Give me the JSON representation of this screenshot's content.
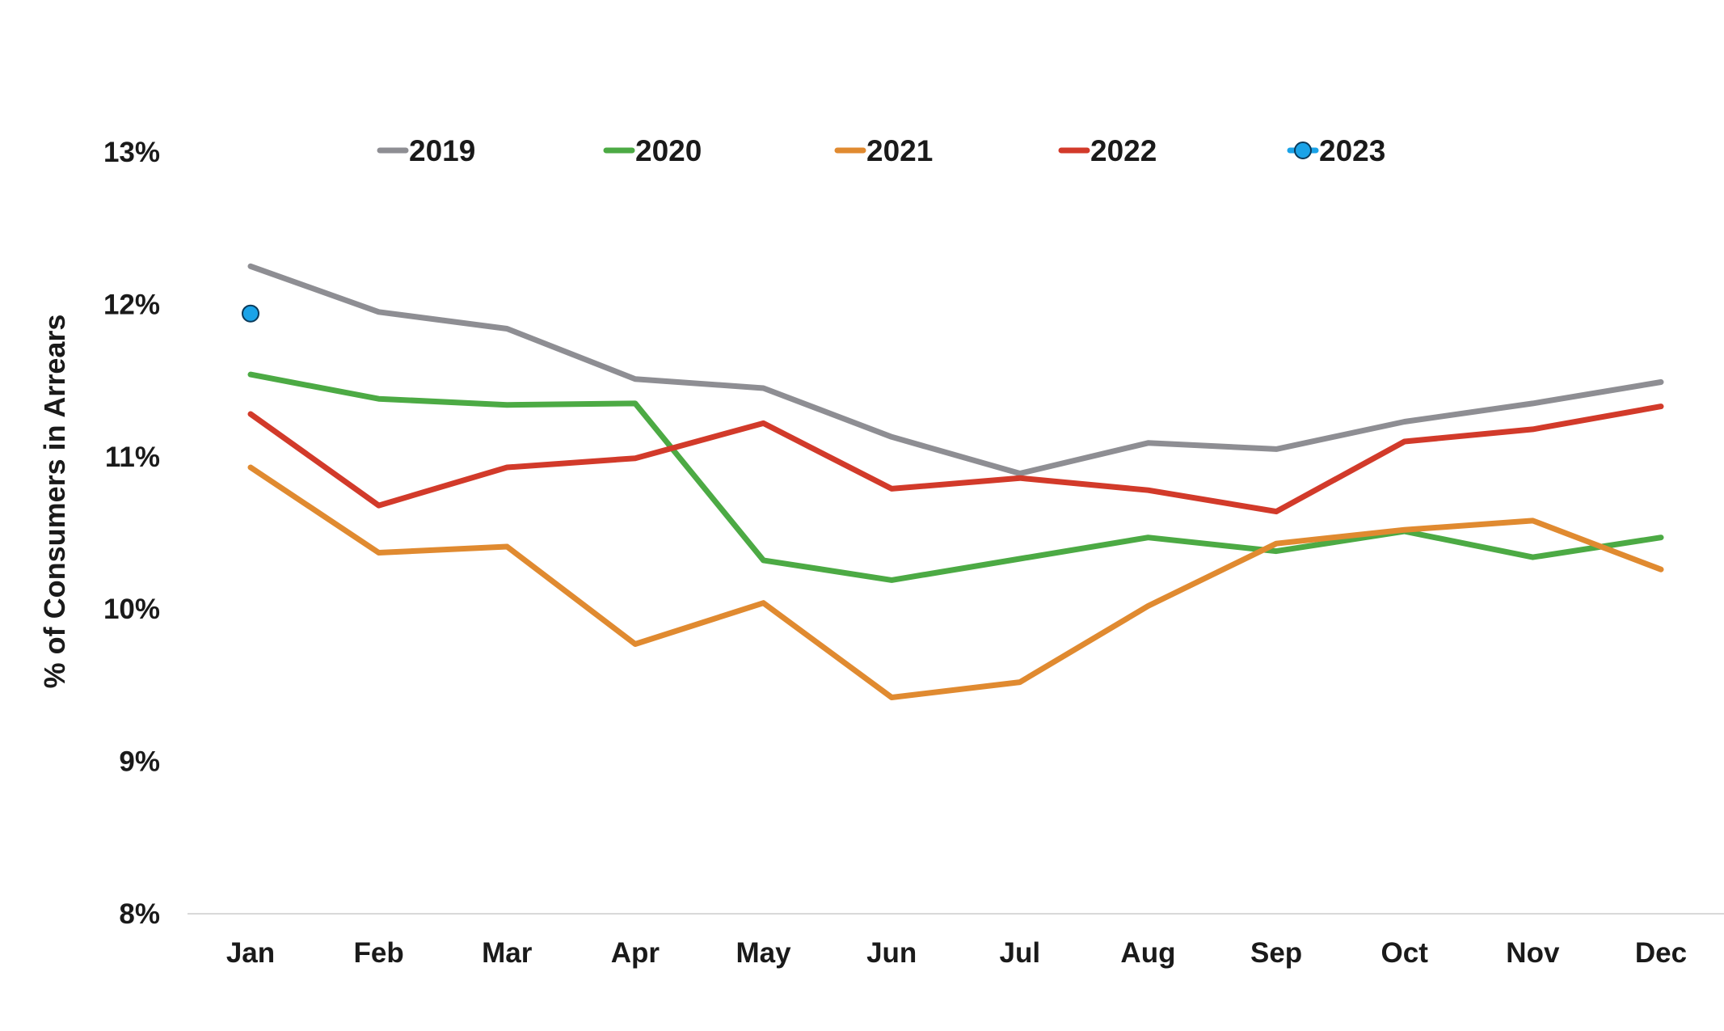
{
  "chart_data": {
    "type": "line",
    "title": "",
    "xlabel": "",
    "ylabel": "% of Consumers in Arrears",
    "categories": [
      "Jan",
      "Feb",
      "Mar",
      "Apr",
      "May",
      "Jun",
      "Jul",
      "Aug",
      "Sep",
      "Oct",
      "Nov",
      "Dec"
    ],
    "y_ticks": [
      "8%",
      "9%",
      "10%",
      "11%",
      "12%",
      "13%"
    ],
    "ylim": [
      8,
      13
    ],
    "grid": false,
    "legend_position": "top",
    "series": [
      {
        "name": "2019",
        "color": "#8e8e93",
        "marker": false,
        "values": [
          12.25,
          11.95,
          11.84,
          11.51,
          11.45,
          11.13,
          10.89,
          11.09,
          11.05,
          11.23,
          11.35,
          11.49
        ]
      },
      {
        "name": "2020",
        "color": "#4caa44",
        "marker": false,
        "values": [
          11.54,
          11.38,
          11.34,
          11.35,
          10.32,
          10.19,
          10.33,
          10.47,
          10.38,
          10.51,
          10.34,
          10.47
        ]
      },
      {
        "name": "2021",
        "color": "#e08a30",
        "marker": false,
        "values": [
          10.93,
          10.37,
          10.41,
          9.77,
          10.04,
          9.42,
          9.52,
          10.02,
          10.43,
          10.52,
          10.58,
          10.26
        ]
      },
      {
        "name": "2022",
        "color": "#d23a2a",
        "marker": false,
        "values": [
          11.28,
          10.68,
          10.93,
          10.99,
          11.22,
          10.79,
          10.86,
          10.78,
          10.64,
          11.1,
          11.18,
          11.33
        ]
      },
      {
        "name": "2023",
        "color": "#1aa3e8",
        "marker": true,
        "values": [
          11.94,
          null,
          null,
          null,
          null,
          null,
          null,
          null,
          null,
          null,
          null,
          null
        ]
      }
    ]
  }
}
